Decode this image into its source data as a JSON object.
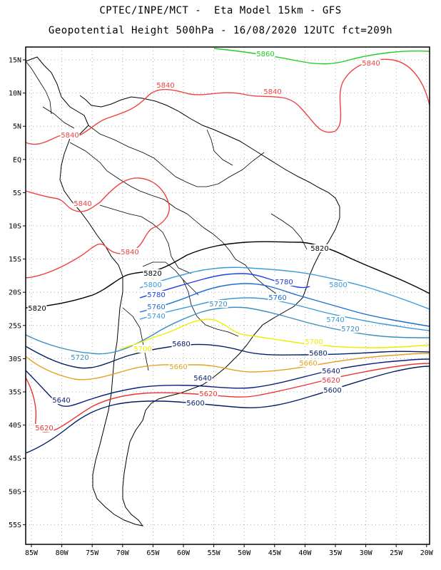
{
  "title_line1": "CPTEC/INPE/MCT -  Eta Model 15km - GFS",
  "title_line2": "Geopotential Height 500hPa - 16/08/2020 12UTC fct=209h",
  "lat_labels": [
    "15N",
    "10N",
    "5N",
    "EQ",
    "5S",
    "10S",
    "15S",
    "20S",
    "25S",
    "30S",
    "35S",
    "40S",
    "45S",
    "50S",
    "55S"
  ],
  "lon_labels": [
    "85W",
    "80W",
    "75W",
    "70W",
    "65W",
    "60W",
    "55W",
    "50W",
    "45W",
    "40W",
    "35W",
    "30W",
    "25W",
    "20W"
  ],
  "contour_colors": {
    "5860": "#22cc22",
    "5840": "#ee4444",
    "5820": "#000000",
    "5800": "#3a9bd8",
    "5780": "#1e3fe0",
    "5760": "#1e6ed0",
    "5740": "#3a9bd8",
    "5720": "#3a8fbf",
    "5700": "#eeee00",
    "5680": "#001f66",
    "5660": "#e6a020",
    "5640": "#0d1f7a",
    "5620": "#ee3333",
    "5600": "#001f66"
  },
  "contour_labels": [
    {
      "text": "5860",
      "level": "5860"
    },
    {
      "text": "5840",
      "level": "5840"
    },
    {
      "text": "5840",
      "level": "5840"
    },
    {
      "text": "5840",
      "level": "5840"
    },
    {
      "text": "5840",
      "level": "5840"
    },
    {
      "text": "5840",
      "level": "5840"
    },
    {
      "text": "5840",
      "level": "5840"
    },
    {
      "text": "5820",
      "level": "5820"
    },
    {
      "text": "5820",
      "level": "5820"
    },
    {
      "text": "5820",
      "level": "5820"
    },
    {
      "text": "5800",
      "level": "5800"
    },
    {
      "text": "5800",
      "level": "5800"
    },
    {
      "text": "5780",
      "level": "5780"
    },
    {
      "text": "5780",
      "level": "5780"
    },
    {
      "text": "5760",
      "level": "5760"
    },
    {
      "text": "5760",
      "level": "5760"
    },
    {
      "text": "5740",
      "level": "5740"
    },
    {
      "text": "5740",
      "level": "5740"
    },
    {
      "text": "5720",
      "level": "5720"
    },
    {
      "text": "5720",
      "level": "5720"
    },
    {
      "text": "5720",
      "level": "5720"
    },
    {
      "text": "5700",
      "level": "5700"
    },
    {
      "text": "5700",
      "level": "5700"
    },
    {
      "text": "5680",
      "level": "5680"
    },
    {
      "text": "5680",
      "level": "5680"
    },
    {
      "text": "5660",
      "level": "5660"
    },
    {
      "text": "5660",
      "level": "5660"
    },
    {
      "text": "5640",
      "level": "5640"
    },
    {
      "text": "5640",
      "level": "5640"
    },
    {
      "text": "5640",
      "level": "5640"
    },
    {
      "text": "5620",
      "level": "5620"
    },
    {
      "text": "5620",
      "level": "5620"
    },
    {
      "text": "5620",
      "level": "5620"
    },
    {
      "text": "5600",
      "level": "5600"
    },
    {
      "text": "5600",
      "level": "5600"
    }
  ]
}
